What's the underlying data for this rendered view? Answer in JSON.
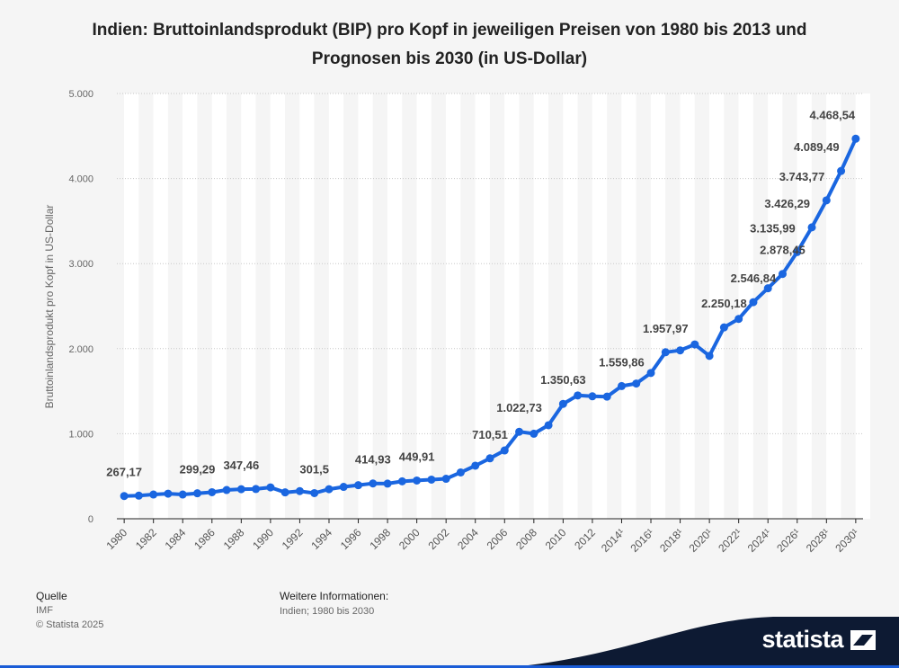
{
  "title": "Indien: Bruttoinlandsprodukt (BIP) pro Kopf in jeweiligen Preisen von 1980 bis 2013 und Prognosen bis 2030 (in US-Dollar)",
  "colors": {
    "line": "#1a66e0",
    "footer": "#0d1a33",
    "accent": "#1a5cd6"
  },
  "footer": {
    "source_heading": "Quelle",
    "source": "IMF",
    "copyright": "© Statista 2025",
    "info_heading": "Weitere Informationen:",
    "info": "Indien; 1980 bis 2030",
    "logo": "statista"
  },
  "chart_data": {
    "type": "line",
    "ylabel": "Bruttoinlandsprodukt pro Kopf in US-Dollar",
    "ylim": [
      0,
      5000
    ],
    "yticks": [
      0,
      1000,
      2000,
      3000,
      4000,
      5000
    ],
    "ytick_labels": [
      "0",
      "1.000",
      "2.000",
      "3.000",
      "4.000",
      "5.000"
    ],
    "xtick_labels": [
      "1980",
      "1982",
      "1984",
      "1986",
      "1988",
      "1990",
      "1992",
      "1994",
      "1996",
      "1998",
      "2000",
      "2002",
      "2004",
      "2006",
      "2008",
      "2010",
      "2012",
      "2014¹",
      "2016¹",
      "2018¹",
      "2020¹",
      "2022¹",
      "2024¹",
      "2026¹",
      "2028¹",
      "2030¹"
    ],
    "x": [
      1980,
      1981,
      1982,
      1983,
      1984,
      1985,
      1986,
      1987,
      1988,
      1989,
      1990,
      1991,
      1992,
      1993,
      1994,
      1995,
      1996,
      1997,
      1998,
      1999,
      2000,
      2001,
      2002,
      2003,
      2004,
      2005,
      2006,
      2007,
      2008,
      2009,
      2010,
      2011,
      2012,
      2013,
      2014,
      2015,
      2016,
      2017,
      2018,
      2019,
      2020,
      2021,
      2022,
      2023,
      2024,
      2025,
      2026,
      2027,
      2028,
      2029,
      2030
    ],
    "values": [
      267.17,
      272,
      285,
      295,
      285,
      299.29,
      312,
      338,
      347.46,
      350,
      369,
      310,
      325,
      301.5,
      348,
      375,
      395,
      414.93,
      413,
      440,
      449.91,
      460,
      470,
      545,
      624,
      710.51,
      803,
      1022.73,
      1000,
      1100,
      1350.63,
      1450,
      1440,
      1436,
      1559.86,
      1590,
      1714,
      1957.97,
      1980,
      2050,
      1915,
      2250.18,
      2350,
      2546.84,
      2710,
      2878.45,
      3135.99,
      3426.29,
      3743.77,
      4089.49,
      4468.54
    ],
    "labels": [
      {
        "year": 1980,
        "text": "267,17"
      },
      {
        "year": 1985,
        "text": "299,29"
      },
      {
        "year": 1988,
        "text": "347,46"
      },
      {
        "year": 1993,
        "text": "301,5"
      },
      {
        "year": 1997,
        "text": "414,93"
      },
      {
        "year": 2000,
        "text": "449,91"
      },
      {
        "year": 2005,
        "text": "710,51"
      },
      {
        "year": 2007,
        "text": "1.022,73"
      },
      {
        "year": 2010,
        "text": "1.350,63"
      },
      {
        "year": 2014,
        "text": "1.559,86"
      },
      {
        "year": 2017,
        "text": "1.957,97"
      },
      {
        "year": 2021,
        "text": "2.250,18"
      },
      {
        "year": 2023,
        "text": "2.546,84"
      },
      {
        "year": 2025,
        "text": "2.878,45"
      },
      {
        "year": 2026,
        "text": "3.135,99"
      },
      {
        "year": 2027,
        "text": "3.426,29"
      },
      {
        "year": 2028,
        "text": "3.743,77"
      },
      {
        "year": 2029,
        "text": "4.089,49"
      },
      {
        "year": 2030,
        "text": "4.468,54"
      }
    ]
  }
}
